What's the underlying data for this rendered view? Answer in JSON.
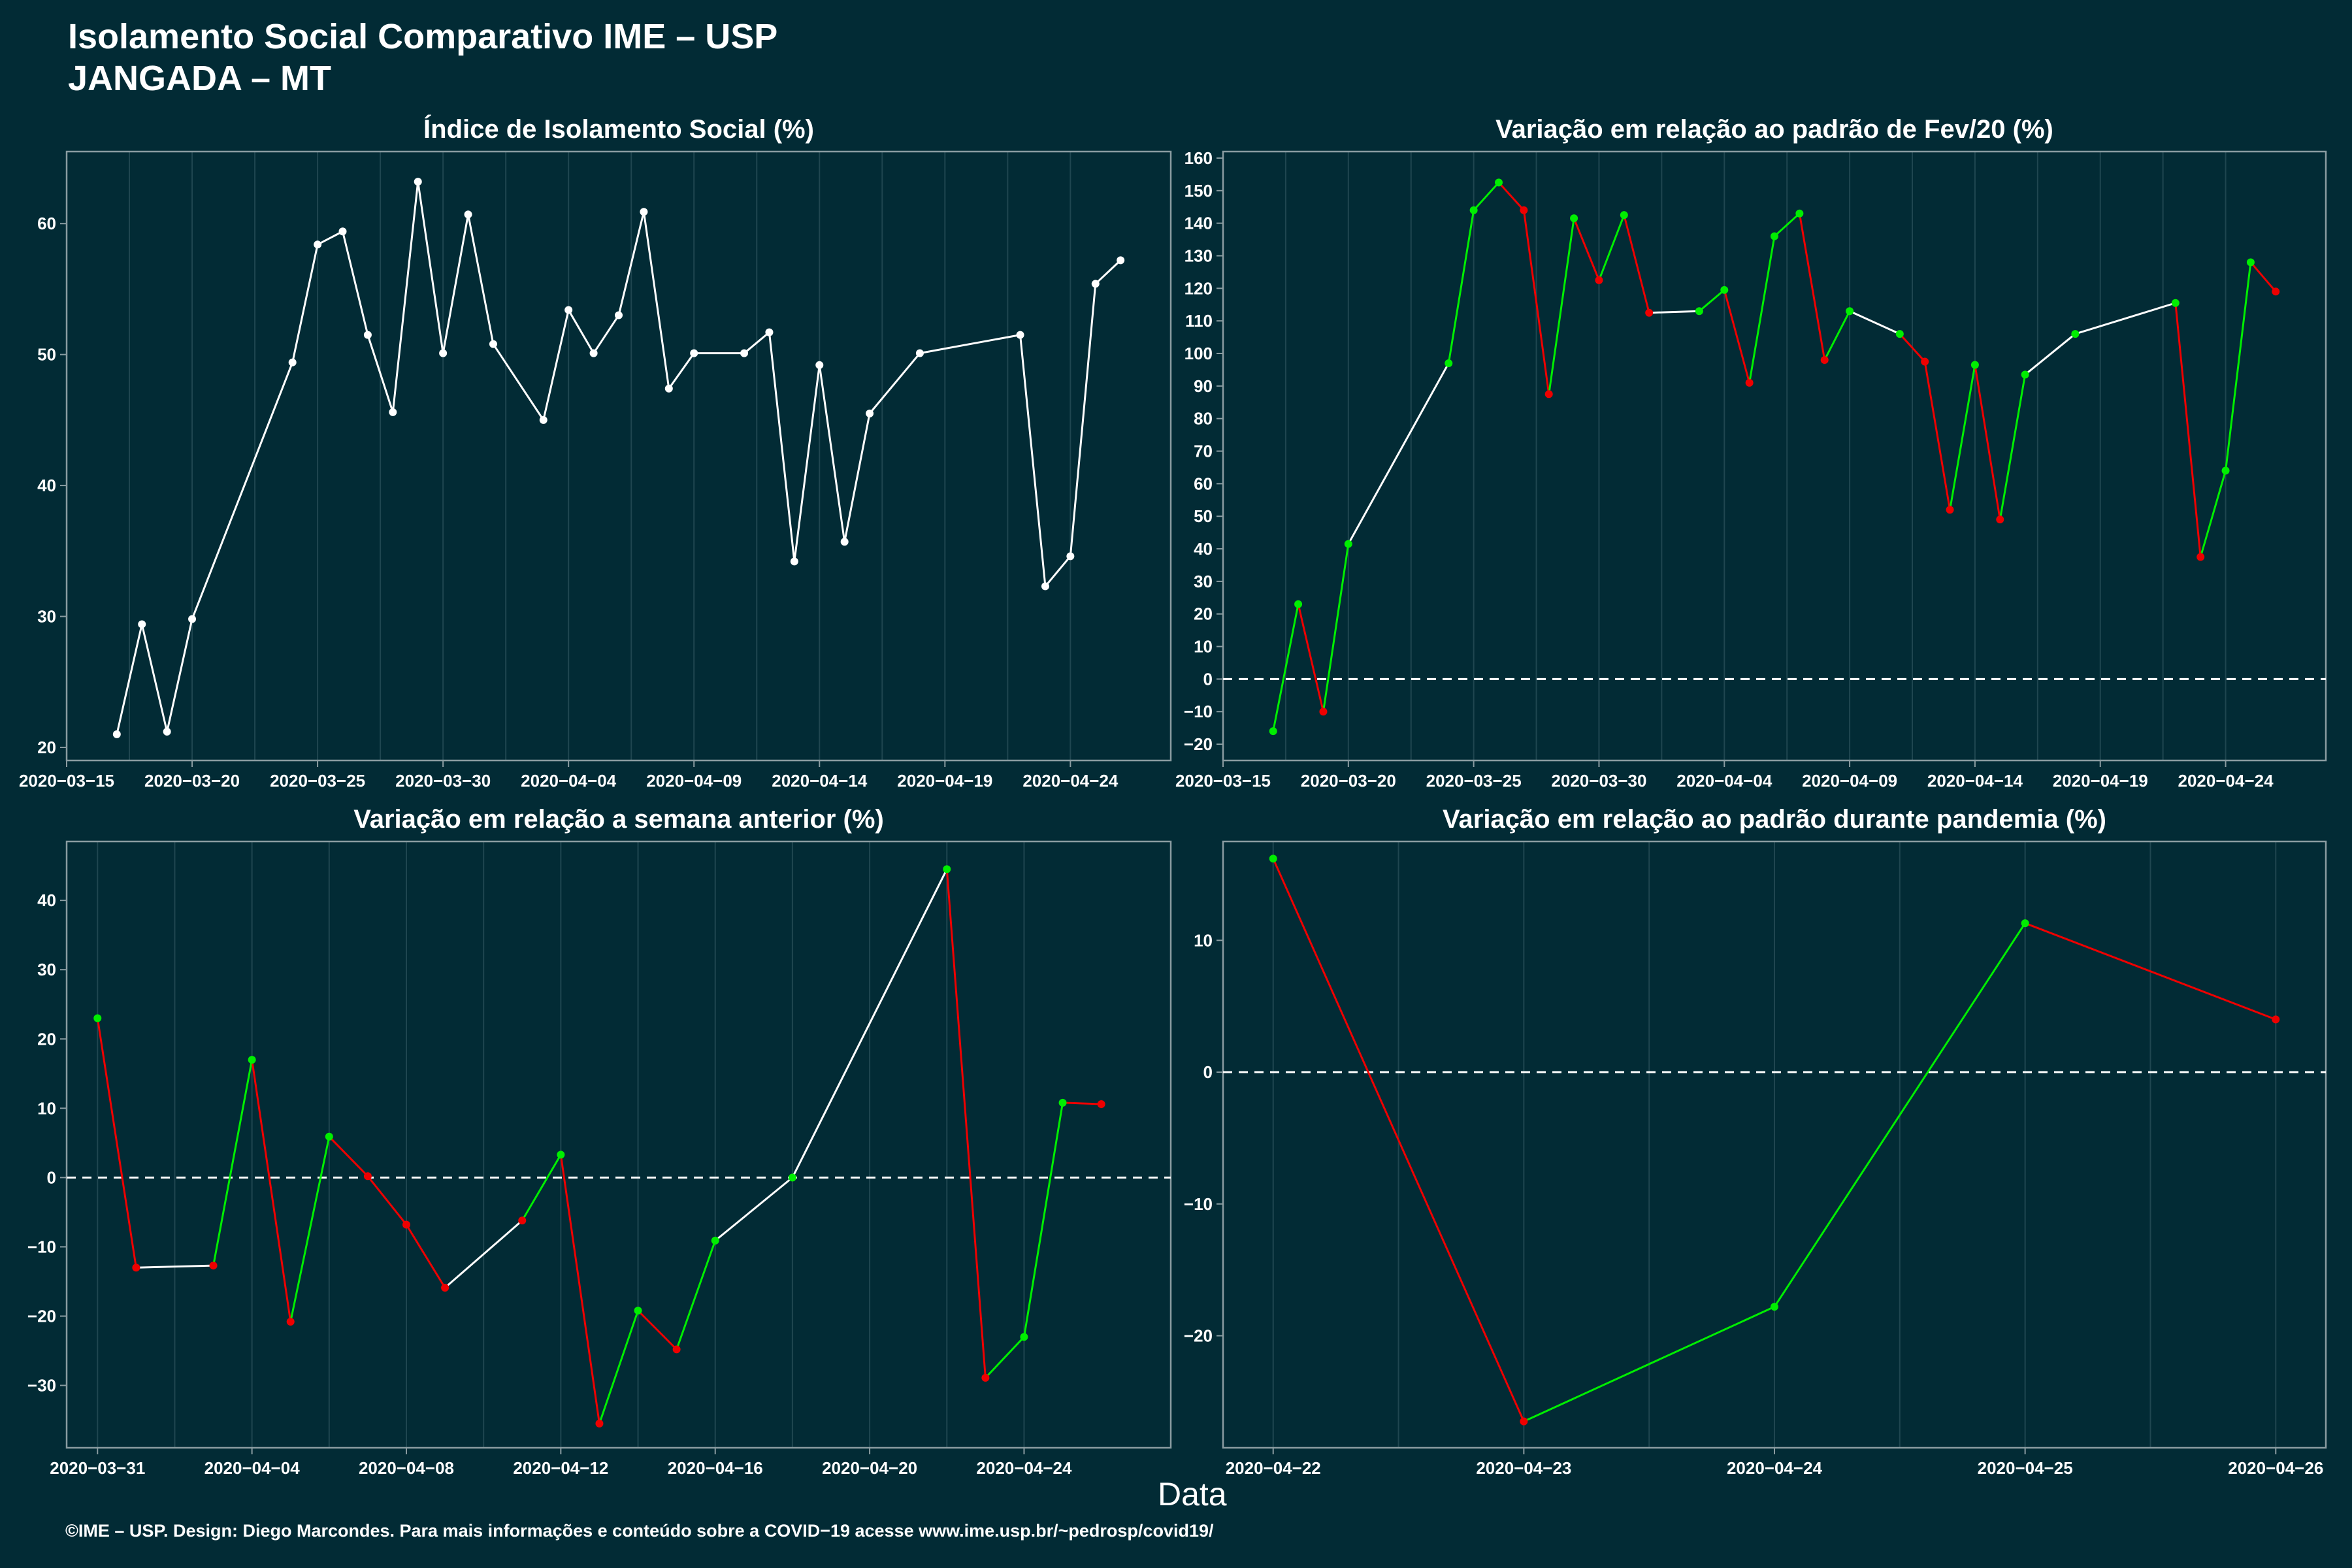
{
  "title_line1": "Isolamento Social Comparativo IME – USP",
  "title_line2": "JANGADA – MT",
  "x_axis_label": "Data",
  "caption": "©IME – USP. Design: Diego Marcondes. Para mais informações e conteúdo sobre a COVID−19 acesse www.ime.usp.br/~pedrosp/covid19/",
  "colors": {
    "background": "#022b35",
    "line": "#ffffff",
    "positive": "#00ee00",
    "negative": "#ee0000",
    "zero_line": "#ffffff"
  },
  "chart_data": [
    {
      "type": "line",
      "title": "Índice de Isolamento Social (%)",
      "xlim": [
        "2020-03-15",
        "2020-04-28"
      ],
      "ylim": [
        19,
        65.5
      ],
      "x_ticks": [
        "2020-03-15",
        "2020-03-20",
        "2020-03-25",
        "2020-03-30",
        "2020-04-04",
        "2020-04-09",
        "2020-04-14",
        "2020-04-19",
        "2020-04-24"
      ],
      "y_ticks": [
        20,
        30,
        40,
        50,
        60
      ],
      "color_mode": "white",
      "zero_line": false,
      "series": [
        {
          "x": [
            "2020-03-17",
            "2020-03-18",
            "2020-03-19",
            "2020-03-20",
            "2020-03-24",
            "2020-03-25",
            "2020-03-26",
            "2020-03-27",
            "2020-03-28",
            "2020-03-29",
            "2020-03-30",
            "2020-03-31",
            "2020-04-01",
            "2020-04-03",
            "2020-04-04",
            "2020-04-05",
            "2020-04-06",
            "2020-04-07",
            "2020-04-08",
            "2020-04-09",
            "2020-04-11",
            "2020-04-12",
            "2020-04-13",
            "2020-04-14",
            "2020-04-15",
            "2020-04-16",
            "2020-04-18",
            "2020-04-22",
            "2020-04-23",
            "2020-04-24",
            "2020-04-25",
            "2020-04-26"
          ],
          "y": [
            21.0,
            29.4,
            21.2,
            29.8,
            49.4,
            58.4,
            59.4,
            51.5,
            45.6,
            63.2,
            50.1,
            60.7,
            50.8,
            45.0,
            53.4,
            50.1,
            53.0,
            60.9,
            47.4,
            50.1,
            50.1,
            51.7,
            34.2,
            49.2,
            35.7,
            45.5,
            50.1,
            51.5,
            32.3,
            34.6,
            55.4,
            57.2
          ]
        }
      ]
    },
    {
      "type": "line",
      "title": "Variação em relação ao padrão de Fev/20 (%)",
      "xlim": [
        "2020-03-15",
        "2020-04-28"
      ],
      "ylim": [
        -25,
        162
      ],
      "x_ticks": [
        "2020-03-15",
        "2020-03-20",
        "2020-03-25",
        "2020-03-30",
        "2020-04-04",
        "2020-04-09",
        "2020-04-14",
        "2020-04-19",
        "2020-04-24"
      ],
      "y_ticks": [
        -20,
        -10,
        0,
        10,
        20,
        30,
        40,
        50,
        60,
        70,
        80,
        90,
        100,
        110,
        120,
        130,
        140,
        150,
        160
      ],
      "color_mode": "change",
      "zero_line": true,
      "series": [
        {
          "x": [
            "2020-03-17",
            "2020-03-18",
            "2020-03-19",
            "2020-03-20",
            "2020-03-24",
            "2020-03-25",
            "2020-03-26",
            "2020-03-27",
            "2020-03-28",
            "2020-03-29",
            "2020-03-30",
            "2020-03-31",
            "2020-04-01",
            "2020-04-03",
            "2020-04-04",
            "2020-04-05",
            "2020-04-06",
            "2020-04-07",
            "2020-04-08",
            "2020-04-09",
            "2020-04-11",
            "2020-04-12",
            "2020-04-13",
            "2020-04-14",
            "2020-04-15",
            "2020-04-16",
            "2020-04-18",
            "2020-04-22",
            "2020-04-23",
            "2020-04-24",
            "2020-04-25",
            "2020-04-26"
          ],
          "y": [
            -16,
            23,
            -10,
            41.5,
            97,
            144,
            152.5,
            144,
            87.5,
            141.5,
            122.5,
            142.5,
            112.5,
            113,
            119.5,
            91,
            136,
            143,
            98,
            113,
            106,
            97.5,
            52,
            96.5,
            49,
            93.5,
            106,
            115.5,
            37.5,
            64,
            128,
            119
          ]
        }
      ]
    },
    {
      "type": "line",
      "title": "Variação em relação a semana anterior (%)",
      "xlim": [
        "2020-03-30.2",
        "2020-04-27.8"
      ],
      "ylim": [
        -39,
        48.5
      ],
      "x_ticks": [
        "2020-03-31",
        "2020-04-04",
        "2020-04-08",
        "2020-04-12",
        "2020-04-16",
        "2020-04-20",
        "2020-04-24"
      ],
      "y_ticks": [
        -30,
        -20,
        -10,
        0,
        10,
        20,
        30,
        40
      ],
      "color_mode": "change",
      "zero_line": true,
      "series": [
        {
          "x": [
            "2020-03-31",
            "2020-04-01",
            "2020-04-03",
            "2020-04-04",
            "2020-04-05",
            "2020-04-06",
            "2020-04-07",
            "2020-04-08",
            "2020-04-09",
            "2020-04-11",
            "2020-04-12",
            "2020-04-13",
            "2020-04-14",
            "2020-04-15",
            "2020-04-16",
            "2020-04-18",
            "2020-04-22",
            "2020-04-23",
            "2020-04-24",
            "2020-04-25",
            "2020-04-26"
          ],
          "y": [
            23,
            -13,
            -12.7,
            17,
            -20.8,
            5.9,
            0.2,
            -6.8,
            -15.9,
            -6.2,
            3.3,
            -35.5,
            -19.2,
            -24.8,
            -9.1,
            0,
            44.5,
            -28.9,
            -23,
            10.8,
            10.6
          ]
        }
      ]
    },
    {
      "type": "line",
      "title": "Variação em relação ao padrão durante pandemia (%)",
      "xlim": [
        "2020-04-21.8",
        "2020-04-26.2"
      ],
      "ylim": [
        -28.5,
        17.5
      ],
      "x_ticks": [
        "2020-04-22",
        "2020-04-23",
        "2020-04-24",
        "2020-04-25",
        "2020-04-26"
      ],
      "y_ticks": [
        -20,
        -10,
        0,
        10
      ],
      "color_mode": "change",
      "zero_line": true,
      "series": [
        {
          "x": [
            "2020-04-22",
            "2020-04-23",
            "2020-04-24",
            "2020-04-25",
            "2020-04-26"
          ],
          "y": [
            16.2,
            -26.5,
            -17.8,
            11.3,
            4.0
          ]
        }
      ]
    }
  ]
}
